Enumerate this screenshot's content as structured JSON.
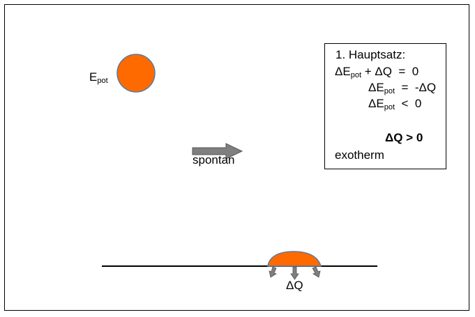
{
  "epot_label": {
    "main": "E",
    "sub": "pot"
  },
  "arrow_label": "spontan",
  "heat_label": "ΔQ",
  "info_box": {
    "title": "1.   Hauptsatz:",
    "eq1": {
      "a": "ΔE",
      "a_sub": "pot",
      "rest": " + ΔQ  =  0"
    },
    "eq2": {
      "a": "ΔE",
      "a_sub": "pot",
      "rest": "  =  -ΔQ"
    },
    "eq3": {
      "a": "ΔE",
      "a_sub": "pot",
      "rest": "  <  0"
    },
    "result": "ΔQ > 0",
    "conclusion": "exotherm"
  },
  "colors": {
    "ball_fill": "#FF6A00",
    "ball_stroke": "#5A7CA0",
    "arrow_fill": "#7F7F7F",
    "line": "#000000"
  }
}
